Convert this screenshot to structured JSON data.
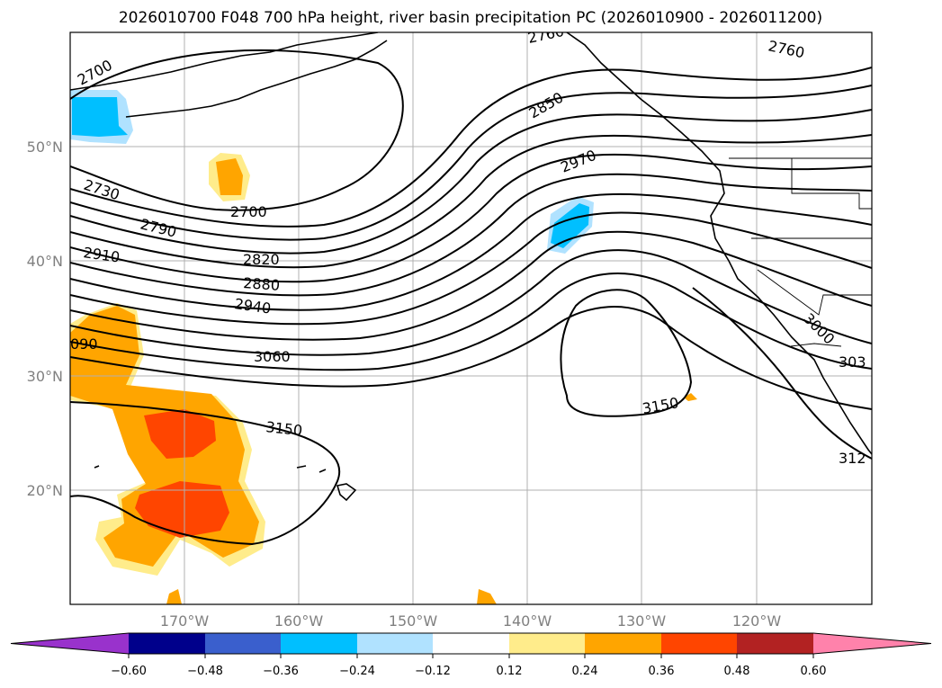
{
  "title": "2026010700 F048 700 hPa height, river basin precipitation PC (2026010900 - 2026011200)",
  "map": {
    "lat_labels": [
      "50°N",
      "40°N",
      "30°N",
      "20°N"
    ],
    "lon_labels": [
      "170°W",
      "160°W",
      "150°W",
      "140°W",
      "130°W",
      "120°W"
    ],
    "contour_labels": [
      "2700",
      "2730",
      "2790",
      "2910",
      "2700",
      "2820",
      "2880",
      "2940",
      "090",
      "3060",
      "3150",
      "2760",
      "2850",
      "2970",
      "2760",
      "3000",
      "303",
      "3150",
      "312"
    ]
  },
  "colorbar": {
    "colors": [
      "#9932cc",
      "#00008b",
      "#3a5fcd",
      "#00bfff",
      "#b0e2ff",
      "#ffffff",
      "#ffec8b",
      "#ffa500",
      "#ff4500",
      "#b22222",
      "#ff82ab"
    ],
    "tick_labels": [
      "−0.60",
      "−0.48",
      "−0.36",
      "−0.24",
      "−0.12",
      "0.12",
      "0.24",
      "0.36",
      "0.48",
      "0.60"
    ]
  }
}
